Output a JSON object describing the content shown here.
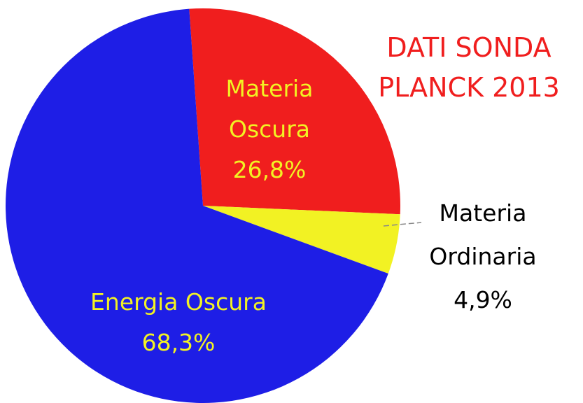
{
  "chart_data": {
    "type": "pie",
    "title": "DATI SONDA PLANCK 2013",
    "categories": [
      "Materia Oscura",
      "Materia Ordinaria",
      "Energia Oscura"
    ],
    "values": [
      26.8,
      4.9,
      68.3
    ],
    "value_labels": [
      "26,8%",
      "4,9%",
      "68,3%"
    ],
    "colors": [
      "#f01e1e",
      "#f2f223",
      "#1e1ee6"
    ]
  }
}
